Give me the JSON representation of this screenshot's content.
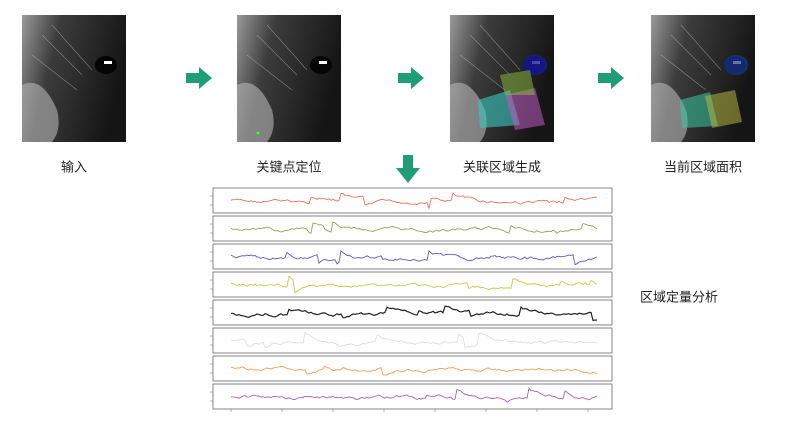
{
  "steps": [
    {
      "label": "输入"
    },
    {
      "label": "关键点定位"
    },
    {
      "label": "关联区域生成"
    },
    {
      "label": "当前区域面积"
    }
  ],
  "analysis": {
    "label": "区域定量分析"
  }
}
